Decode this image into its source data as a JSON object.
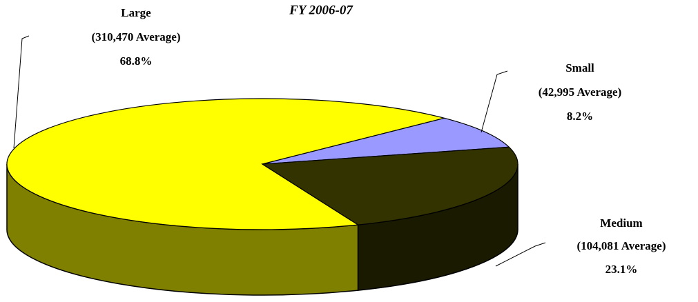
{
  "chart_data": {
    "type": "pie",
    "title": "FY 2006-07",
    "categories": [
      "Large",
      "Small",
      "Medium"
    ],
    "average_labels": [
      "(310,470 Average)",
      "(42,995 Average)",
      "(104,081 Average)"
    ],
    "values": [
      68.8,
      8.2,
      23.1
    ],
    "value_labels": [
      "68.8%",
      "8.2%",
      "23.1%"
    ],
    "colors": [
      "#ffff00",
      "#9999ff",
      "#333300"
    ]
  }
}
